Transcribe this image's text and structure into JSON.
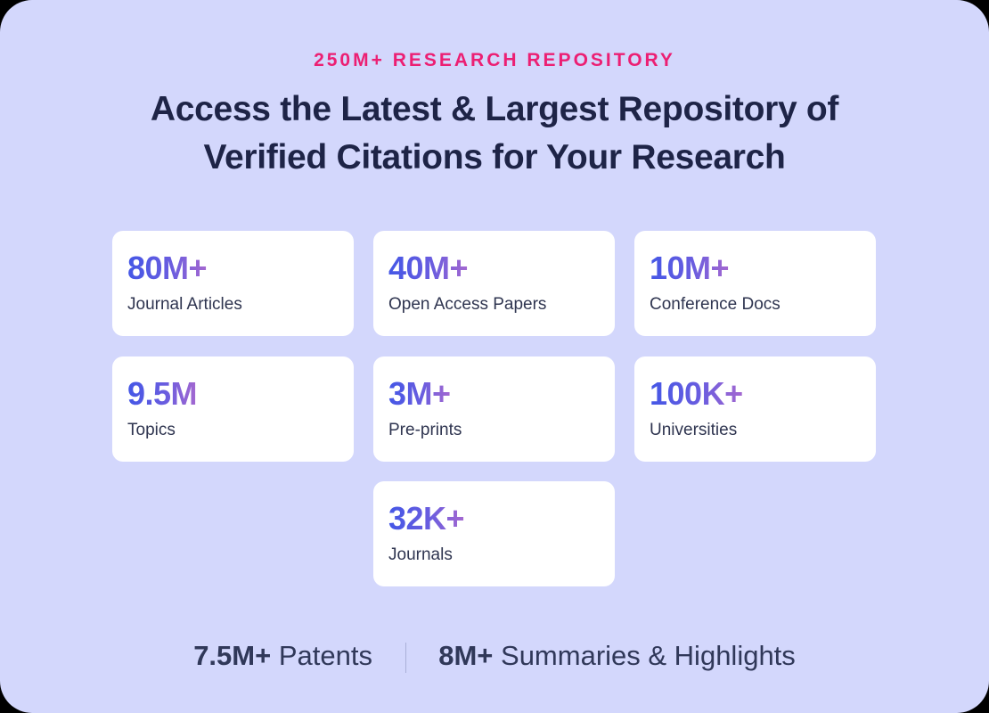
{
  "eyebrow": "250M+ RESEARCH REPOSITORY",
  "title_line1": "Access the Latest & Largest Repository of",
  "title_line2": "Verified Citations for Your Research",
  "stats": [
    {
      "value": "80M+",
      "label": "Journal Articles"
    },
    {
      "value": "40M+",
      "label": "Open Access Papers"
    },
    {
      "value": "10M+",
      "label": "Conference Docs"
    },
    {
      "value": "9.5M",
      "label": "Topics"
    },
    {
      "value": "3M+",
      "label": "Pre-prints"
    },
    {
      "value": "100K+",
      "label": "Universities"
    },
    {
      "value": "32K+",
      "label": "Journals"
    }
  ],
  "footer": [
    {
      "value": "7.5M+",
      "label": "Patents"
    },
    {
      "value": "8M+",
      "label": "Summaries & Highlights"
    }
  ],
  "colors": {
    "background": "#d3d7fc",
    "accent": "#ec1f73",
    "gradient_start": "#4457e6",
    "gradient_end": "#a468d0",
    "text": "#1e2447"
  }
}
